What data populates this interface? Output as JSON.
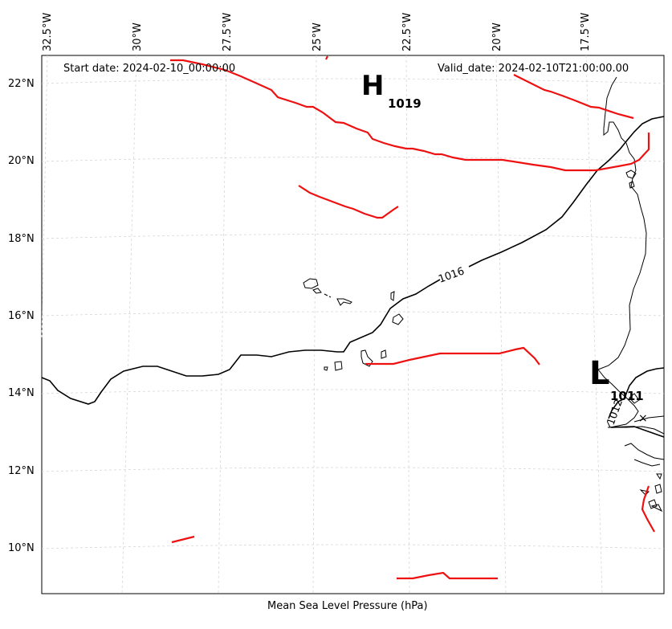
{
  "map": {
    "start_date": "Start date: 2024-02-10_00:00:00",
    "valid_date": "Valid_date: 2024-02-10T21:00:00.00",
    "caption": "Mean Sea Level Pressure (hPa)",
    "lon_labels": [
      "32.5°W",
      "30°W",
      "27.5°W",
      "25°W",
      "22.5°W",
      "20°W",
      "17.5°W"
    ],
    "lat_labels": [
      "22°N",
      "20°N",
      "18°N",
      "16°N",
      "14°N",
      "12°N",
      "10°N"
    ],
    "high": {
      "symbol": "H",
      "value": "1019"
    },
    "low": {
      "symbol": "L",
      "value": "1011"
    },
    "contour_labels": [
      "1016",
      "1012"
    ],
    "colors": {
      "isobar": "#000000",
      "front": "#ee1111",
      "grid": "#cccccc",
      "coast": "#000000"
    }
  }
}
